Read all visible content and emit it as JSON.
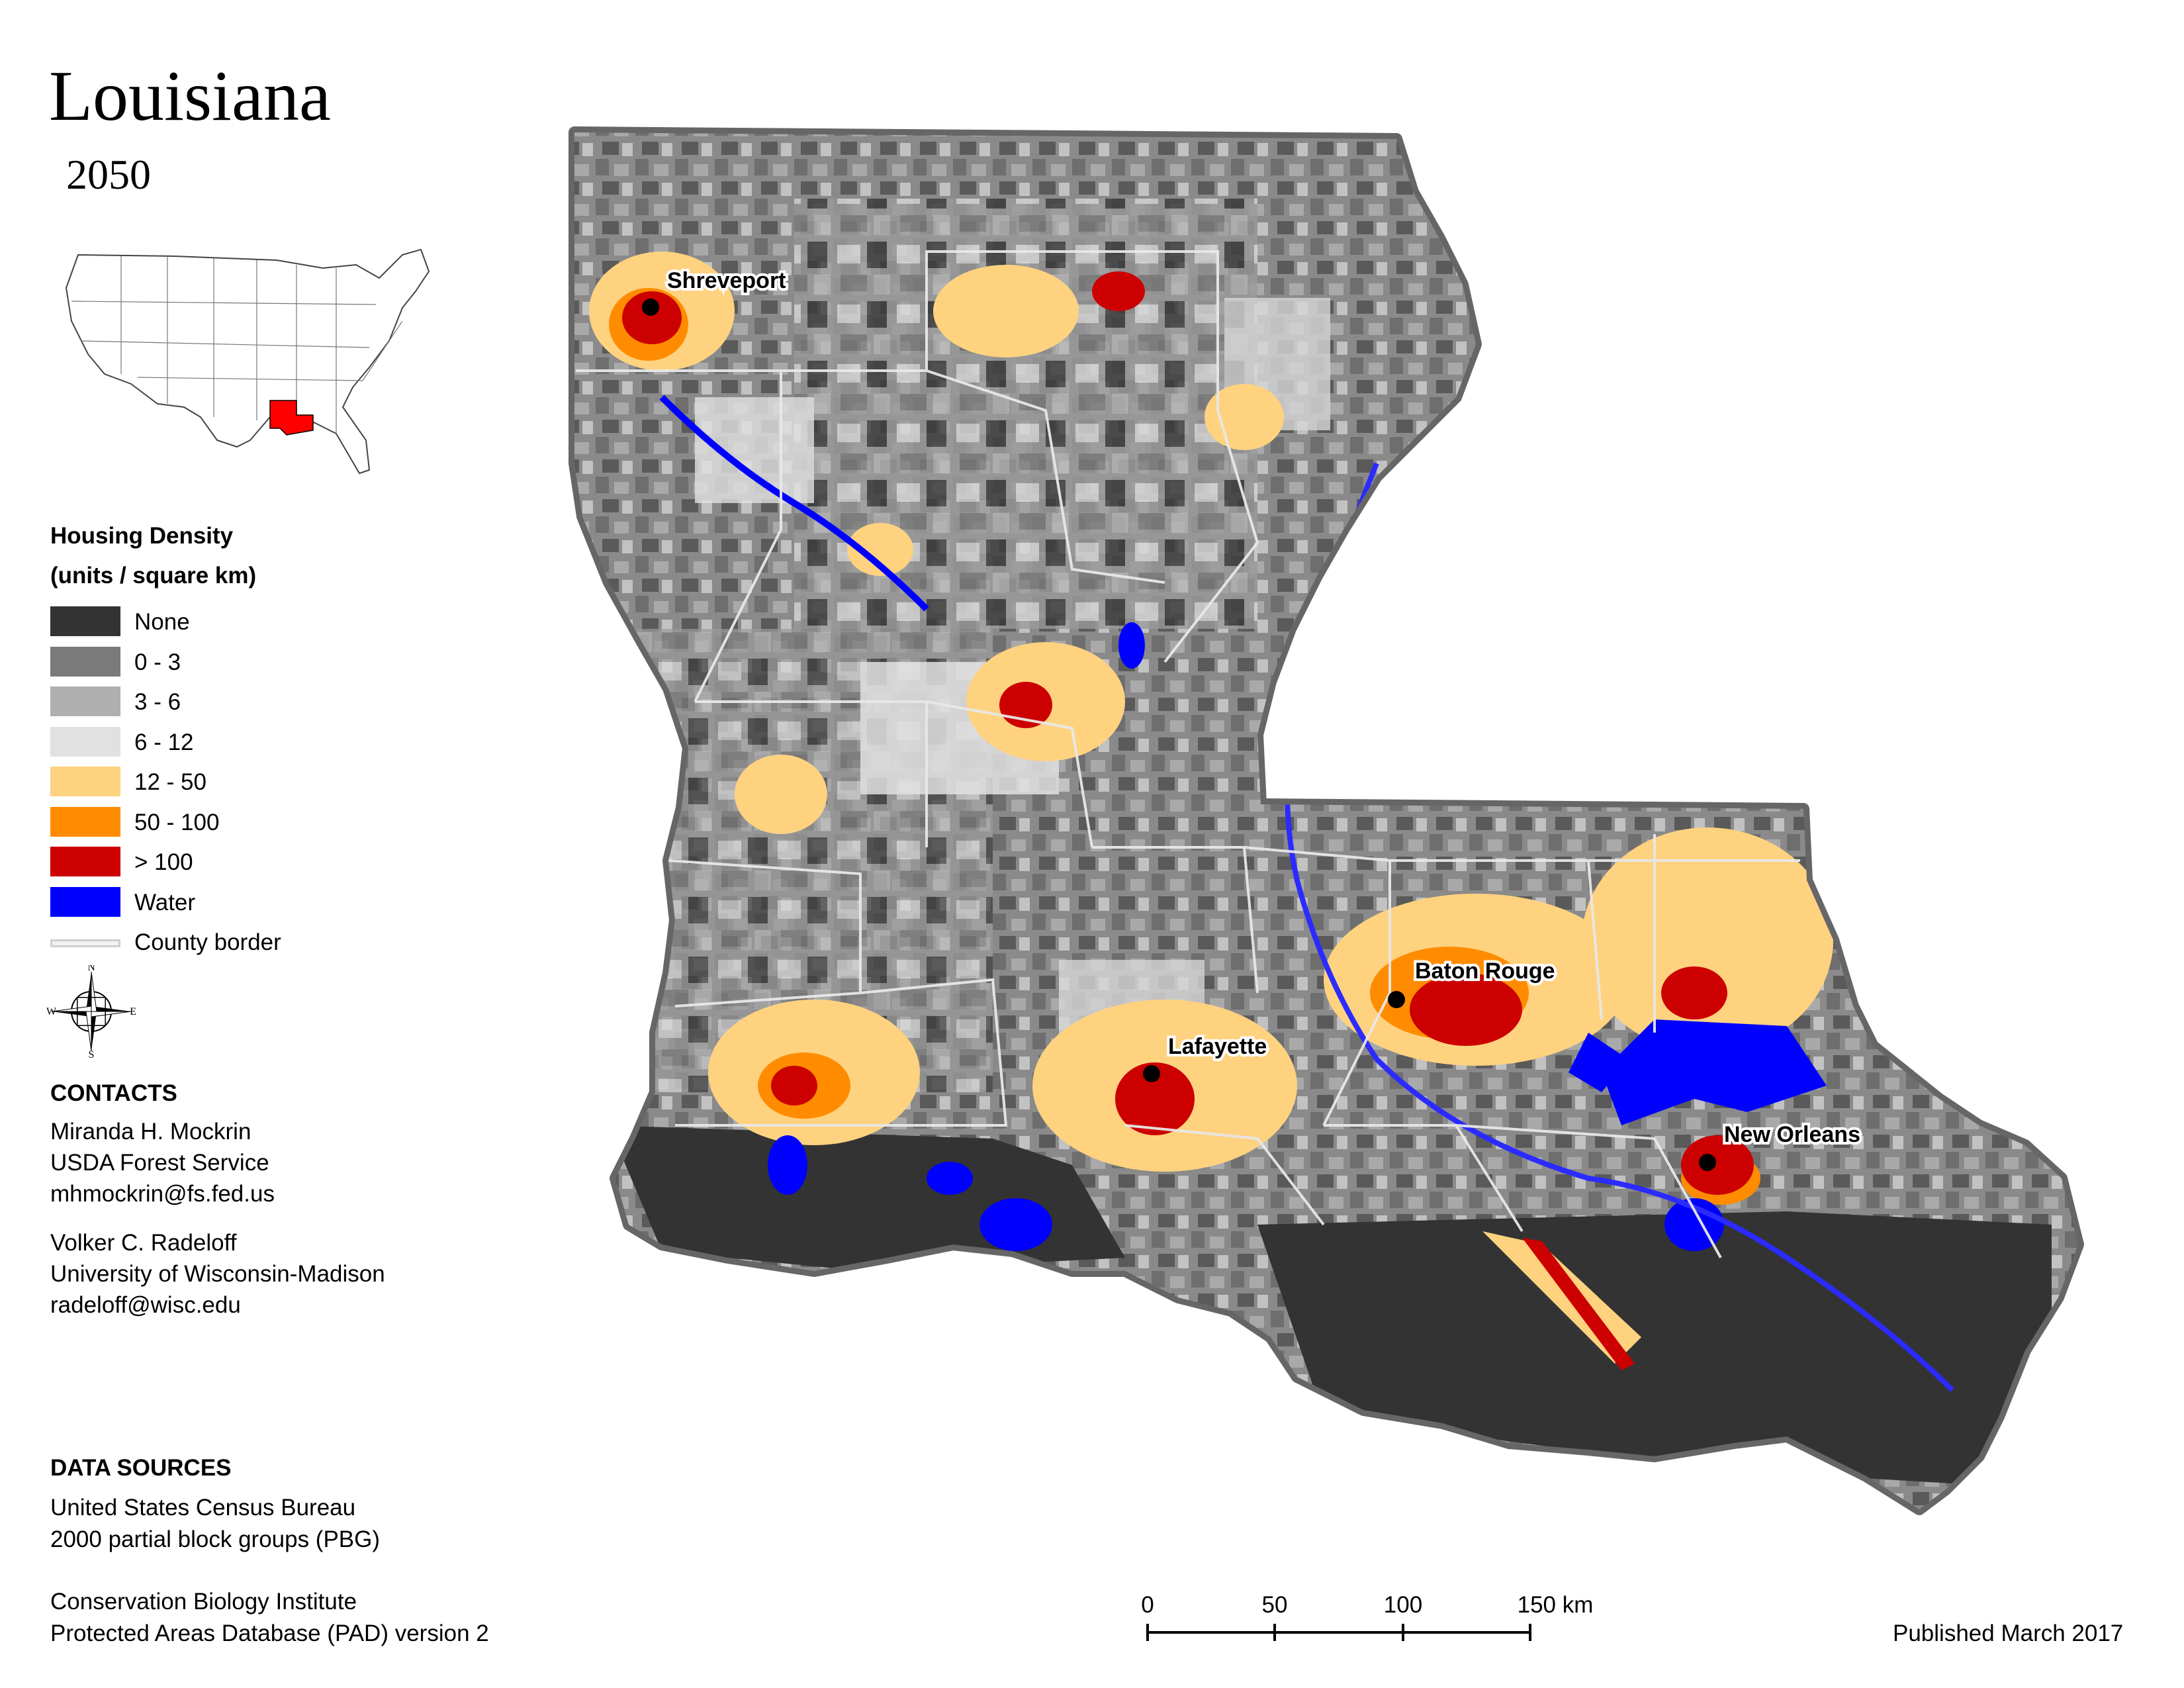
{
  "title": "Louisiana",
  "year": "2050",
  "legend": {
    "title_line1": "Housing Density",
    "title_line2": "(units / square km)",
    "items": [
      {
        "label": "None",
        "color": "#333333"
      },
      {
        "label": "0 - 3",
        "color": "#7a7a7a"
      },
      {
        "label": "3 - 6",
        "color": "#b0b0b0"
      },
      {
        "label": "6 - 12",
        "color": "#e1e1e1"
      },
      {
        "label": "12 - 50",
        "color": "#ffd280"
      },
      {
        "label": "50 - 100",
        "color": "#ff8c00"
      },
      {
        "label": "> 100",
        "color": "#cc0000"
      },
      {
        "label": "Water",
        "color": "#0000ff"
      }
    ],
    "border_label": "County border"
  },
  "compass": {
    "n": "N",
    "s": "S",
    "e": "E",
    "w": "W"
  },
  "contacts": {
    "heading": "CONTACTS",
    "person1": {
      "name": "Miranda H. Mockrin",
      "org": "USDA Forest Service",
      "email": "mhmockrin@fs.fed.us"
    },
    "person2": {
      "name": "Volker C. Radeloff",
      "org": "University of Wisconsin-Madison",
      "email": "radeloff@wisc.edu"
    }
  },
  "data_sources": {
    "heading": "DATA SOURCES",
    "line1": "United States Census Bureau",
    "line2": "2000 partial block groups (PBG)",
    "line3": "Conservation Biology Institute",
    "line4": "Protected Areas Database (PAD) version 2"
  },
  "cities": {
    "shreveport": "Shreveport",
    "baton_rouge": "Baton Rouge",
    "lafayette": "Lafayette",
    "new_orleans": "New Orleans"
  },
  "scale_bar": {
    "t0": "0",
    "t1": "50",
    "t2": "100",
    "t3": "150 km"
  },
  "published": "Published March 2017"
}
